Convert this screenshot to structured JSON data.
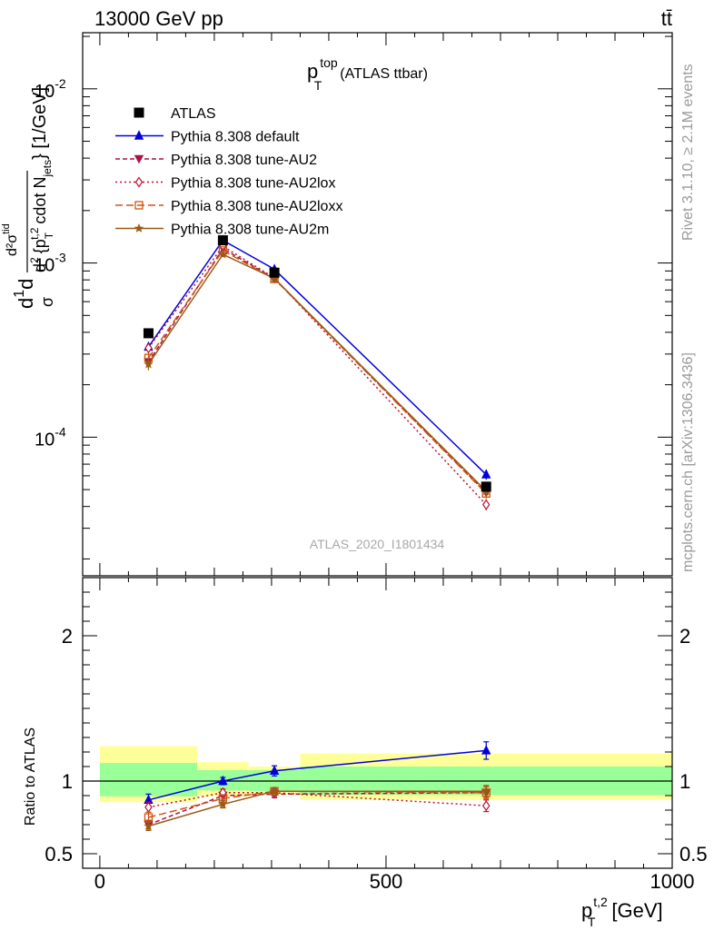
{
  "header": {
    "left": "13000 GeV pp",
    "right": "tt̄"
  },
  "side_labels": {
    "rivet": "Rivet 3.1.10, ≥ 2.1M events",
    "mcplots": "mcplots.cern.ch [arXiv:1306.3436]"
  },
  "watermark": "ATLAS_2020_I1801434",
  "legend_entries": [
    "ATLAS",
    "Pythia 8.308 default",
    "Pythia 8.308 tune-AU2",
    "Pythia 8.308 tune-AU2lox",
    "Pythia 8.308 tune-AU2loxx",
    "Pythia 8.308 tune-AU2m"
  ],
  "chart_data": [
    {
      "type": "line",
      "panel": "main",
      "title": "p_T^top (ATLAS ttbar)",
      "title_parts": {
        "p": "p",
        "sup": "top",
        "sub": "T",
        "rest": "(ATLAS ttbar)"
      },
      "ylabel": "d¹d/σ d²σ^{tid} / d² {p_T^{t,2} cdot N_jets} [1/GeV]",
      "ylabel_parts": {
        "frac_num": "d²σ",
        "frac_num_sup": "tid",
        "frac_left": "d",
        "frac_sigma": "σ",
        "lead": "1",
        "d2": "d",
        "d2sup": "2",
        "brace": "{p",
        "pt_sub": "T",
        "pt_sup": "t,2",
        "cdot": "cdot N",
        "jets": "jets",
        "unit": "} [1/GeV]"
      },
      "yscale": "log",
      "ylim": [
        1.6e-05,
        0.021
      ],
      "yticks": [
        {
          "base": "10",
          "exp": "-4",
          "value": 0.0001
        },
        {
          "base": "10",
          "exp": "-3",
          "value": 0.001
        },
        {
          "base": "10",
          "exp": "-2",
          "value": 0.01
        }
      ],
      "xlim": [
        -30,
        1000
      ],
      "x": [
        85,
        215,
        305,
        675
      ],
      "bin_edges": [
        0,
        170,
        260,
        350,
        1000
      ],
      "data": {
        "name": "ATLAS",
        "values": [
          0.000395,
          0.00135,
          0.00088,
          5.2e-05
        ]
      },
      "series": [
        {
          "name": "Pythia 8.308 default",
          "color": "#0000dd",
          "values": [
            0.00033,
            0.00135,
            0.00092,
            6.1e-05
          ],
          "errors": [
            2e-05,
            4e-05,
            3e-05,
            4e-06
          ]
        },
        {
          "name": "Pythia 8.308 tune-AU2",
          "color": "#aa1144",
          "values": [
            0.00027,
            0.00121,
            0.000815,
            4.8e-05
          ],
          "errors": [
            2e-05,
            4e-05,
            3e-05,
            3e-06
          ]
        },
        {
          "name": "Pythia 8.308 tune-AU2lox",
          "color": "#bb1133",
          "values": [
            0.000325,
            0.00125,
            0.00082,
            4.1e-05
          ],
          "errors": [
            2e-05,
            4e-05,
            3e-05,
            3e-06
          ]
        },
        {
          "name": "Pythia 8.308 tune-AU2loxx",
          "color": "#cc5511",
          "values": [
            0.000285,
            0.00118,
            0.00081,
            4.75e-05
          ],
          "errors": [
            2e-05,
            4e-05,
            3e-05,
            3e-06
          ]
        },
        {
          "name": "Pythia 8.308 tune-AU2m",
          "color": "#9a5a14",
          "values": [
            0.000262,
            0.00112,
            0.000815,
            4.9e-05
          ],
          "errors": [
            2e-05,
            4e-05,
            3e-05,
            3e-06
          ]
        }
      ]
    },
    {
      "type": "line",
      "panel": "ratio",
      "ylabel": "Ratio to ATLAS",
      "xlabel": "p_T^{t,2} [GeV]",
      "xlabel_parts": {
        "p": "p",
        "sub": "T",
        "sup": "t,2",
        "unit": "[GeV]"
      },
      "ylim": [
        0.4,
        2.4
      ],
      "yticks": [
        "0.5",
        "1",
        "2"
      ],
      "ytick_values": [
        0.5,
        1,
        2
      ],
      "xlim": [
        -30,
        1000
      ],
      "xticks": [
        "0",
        "500",
        "1000"
      ],
      "xtick_values": [
        0,
        500,
        1000
      ],
      "x": [
        85,
        215,
        305,
        675
      ],
      "bands": {
        "stat_low": [
          0.895,
          0.935,
          0.93,
          0.905
        ],
        "stat_high": [
          1.125,
          1.075,
          1.075,
          1.1
        ],
        "tot_low": [
          0.855,
          0.895,
          0.905,
          0.87
        ],
        "tot_high": [
          1.24,
          1.13,
          1.1,
          1.19
        ]
      },
      "series": [
        {
          "name": "Pythia 8.308 default",
          "values": [
            0.87,
            1.0,
            1.07,
            1.21
          ],
          "errors": [
            0.04,
            0.025,
            0.035,
            0.06
          ]
        },
        {
          "name": "Pythia 8.308 tune-AU2",
          "values": [
            0.7,
            0.9,
            0.91,
            0.92
          ],
          "errors": [
            0.03,
            0.025,
            0.025,
            0.04
          ]
        },
        {
          "name": "Pythia 8.308 tune-AU2lox",
          "values": [
            0.82,
            0.92,
            0.92,
            0.83
          ],
          "errors": [
            0.035,
            0.025,
            0.025,
            0.04
          ]
        },
        {
          "name": "Pythia 8.308 tune-AU2loxx",
          "values": [
            0.75,
            0.88,
            0.93,
            0.92
          ],
          "errors": [
            0.035,
            0.025,
            0.025,
            0.04
          ]
        },
        {
          "name": "Pythia 8.308 tune-AU2m",
          "values": [
            0.69,
            0.84,
            0.93,
            0.93
          ],
          "errors": [
            0.03,
            0.025,
            0.025,
            0.04
          ]
        }
      ]
    }
  ]
}
